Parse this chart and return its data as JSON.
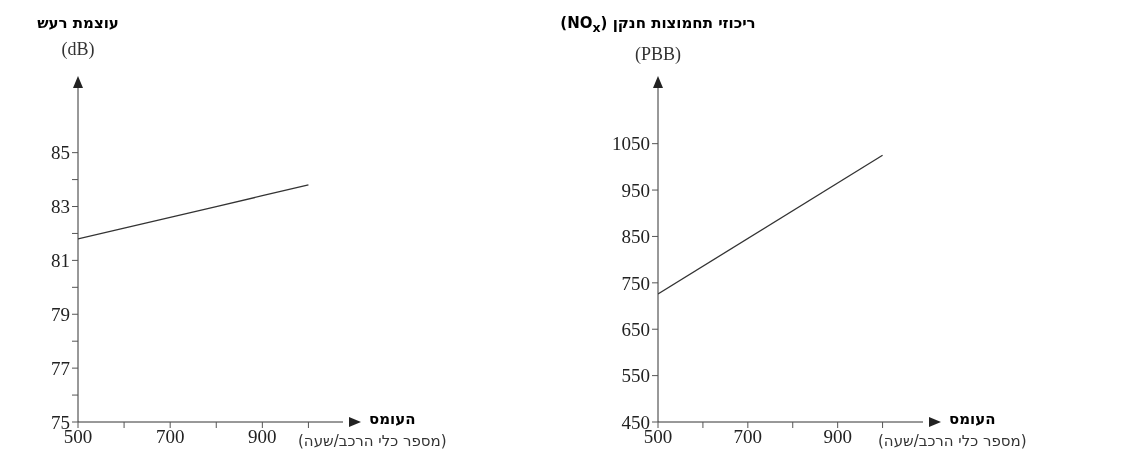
{
  "chart_data": [
    {
      "type": "line",
      "ylabel": "עוצמת רעש\n(dB)",
      "xlabel": "העומס\n(מספר כלי הרכב/שעה)",
      "x": [
        500,
        600,
        700,
        800,
        900,
        1000
      ],
      "marker": "none",
      "grid": false,
      "series": [
        {
          "color": "#333333",
          "values": [
            81.8,
            82.2,
            82.6,
            83.0,
            83.4,
            83.8
          ]
        }
      ],
      "xlim": [
        500,
        1075
      ],
      "xticks": [
        500,
        {
          "value": 600,
          "label": null
        },
        700,
        {
          "value": 800,
          "label": null
        },
        900,
        {
          "value": 1000,
          "label": null
        }
      ],
      "ylim": [
        75,
        87.4
      ],
      "yticks": [
        75,
        {
          "value": 76,
          "label": null
        },
        77,
        {
          "value": 78,
          "label": null
        },
        79,
        {
          "value": 80,
          "label": null
        },
        81,
        {
          "value": 82,
          "label": null
        },
        83,
        {
          "value": 84,
          "label": null
        },
        85
      ]
    },
    {
      "type": "line",
      "ylabel": "ריכוזי תחמוצות חנקן (NO$_{x}$)\n(PBB)",
      "xlabel": "העומס\n(מספר כלי הרכב/שעה)",
      "x": [
        500,
        1000
      ],
      "marker": "none",
      "grid": false,
      "series": [
        {
          "color": "#333333",
          "values": [
            726,
            1025
          ]
        }
      ],
      "xlim": [
        500,
        1090
      ],
      "xticks": [
        500,
        {
          "value": 600,
          "label": null
        },
        700,
        {
          "value": 800,
          "label": null
        },
        900,
        {
          "value": 1000,
          "label": null
        }
      ],
      "ylim": [
        450,
        1170
      ],
      "yticks": [
        450,
        550,
        650,
        750,
        850,
        950,
        1050
      ]
    }
  ]
}
